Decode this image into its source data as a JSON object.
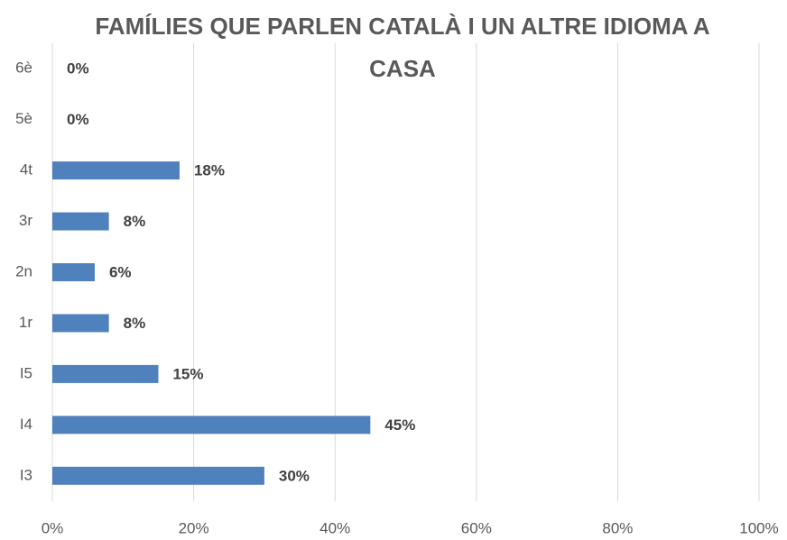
{
  "chart_data": {
    "type": "bar",
    "orientation": "horizontal",
    "title": "FAMÍLIES QUE PARLEN CATALÀ I UN ALTRE IDIOMA A CASA",
    "categories": [
      "I3",
      "I4",
      "I5",
      "1r",
      "2n",
      "3r",
      "4t",
      "5è",
      "6è"
    ],
    "values": [
      30,
      45,
      15,
      8,
      6,
      8,
      18,
      0,
      0
    ],
    "value_labels": [
      "30%",
      "45%",
      "15%",
      "8%",
      "6%",
      "8%",
      "18%",
      "0%",
      "0%"
    ],
    "color": "#4f81bd",
    "xlim": [
      0,
      100
    ],
    "xticks": [
      {
        "value": 0,
        "label": "0%"
      },
      {
        "value": 20,
        "label": "20%"
      },
      {
        "value": 40,
        "label": "40%"
      },
      {
        "value": 60,
        "label": "60%"
      },
      {
        "value": 80,
        "label": "80%"
      },
      {
        "value": 100,
        "label": "100%"
      }
    ],
    "grid": true
  }
}
